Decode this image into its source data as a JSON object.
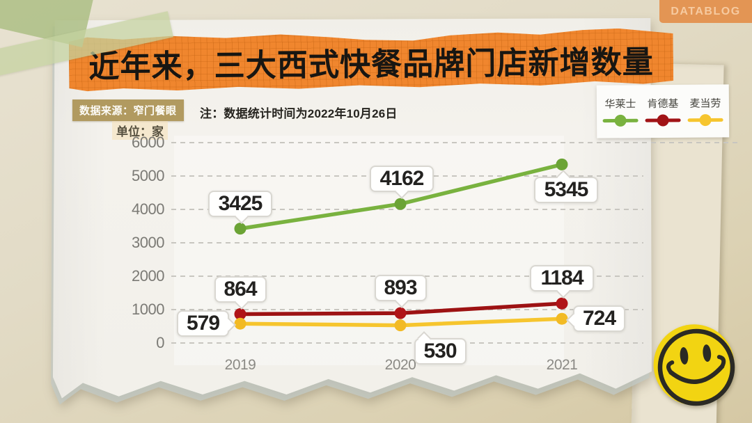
{
  "badge_datablog": "DATABLOG",
  "header": {
    "title": "近年来，三大西式快餐品牌门店新增数量",
    "source_label": "数据来源：窄门餐眼",
    "note": "注：数据统计时间为2022年10月26日",
    "unit_label": "单位：家"
  },
  "legend": {
    "items": [
      {
        "label": "华莱士",
        "color": "#79b23f"
      },
      {
        "label": "肯德基",
        "color": "#a11316"
      },
      {
        "label": "麦当劳",
        "color": "#f6c52e"
      }
    ]
  },
  "chart_data": {
    "type": "line",
    "title": "近年来，三大西式快餐品牌门店新增数量",
    "unit": "家",
    "categories": [
      "2019",
      "2020",
      "2021"
    ],
    "series": [
      {
        "name": "华莱士",
        "color": "#79b23f",
        "dot_color": "#6ba335",
        "values": [
          3425,
          4162,
          5345
        ],
        "label_pos": [
          "above",
          "above",
          "below"
        ],
        "label_dx": [
          0,
          2,
          6
        ]
      },
      {
        "name": "肯德基",
        "color": "#9d1213",
        "dot_color": "#b01418",
        "values": [
          864,
          893,
          1184
        ],
        "label_pos": [
          "above",
          "above",
          "above"
        ],
        "label_dx": [
          0,
          0,
          0
        ]
      },
      {
        "name": "麦当劳",
        "color": "#f6c52e",
        "dot_color": "#f2ba24",
        "values": [
          579,
          530,
          724
        ],
        "label_pos": [
          "left",
          "below",
          "right"
        ],
        "label_dx": [
          0,
          57,
          0
        ]
      }
    ],
    "ylim": [
      0,
      6000
    ],
    "yticks": [
      0,
      1000,
      2000,
      3000,
      4000,
      5000,
      6000
    ],
    "grid": "dashed-horizontal",
    "legend_position": "top-right",
    "source": "数据来源：窄门餐眼",
    "note": "注：数据统计时间为2022年10月26日"
  },
  "icons": {
    "smiley": "smiley-face-sticker",
    "tape": "washi-tape"
  },
  "colors": {
    "banner": "#f0862e",
    "background": "#e0d8c2",
    "paper": "#f3f1ec",
    "source_badge": "#b19a60",
    "datablog_tab": "#e39554",
    "datablog_text": "#f6caa0"
  }
}
